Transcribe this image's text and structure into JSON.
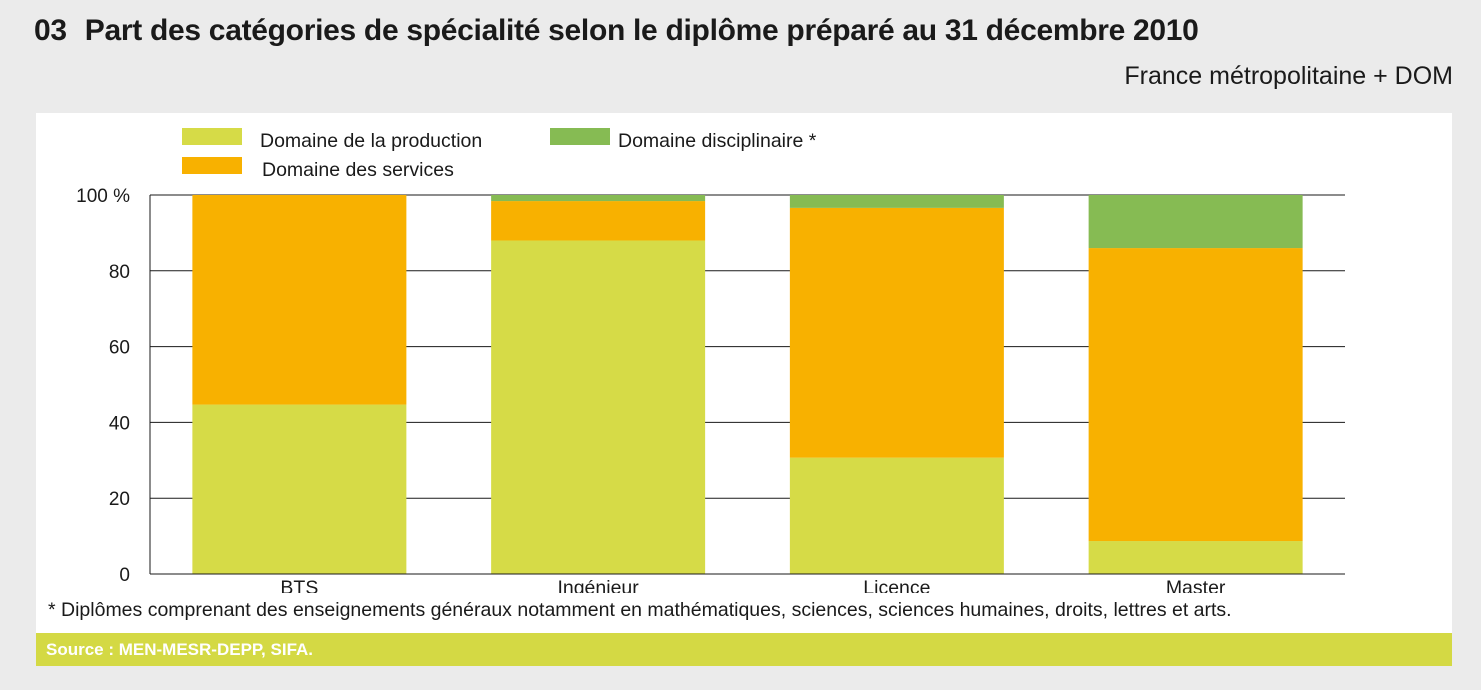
{
  "header": {
    "number": "03",
    "title": "Part des catégories de spécialité selon le diplôme préparé au 31 décembre 2010",
    "subtitle": "France métropolitaine + DOM"
  },
  "colors": {
    "production": "#d6db47",
    "services": "#f8b100",
    "disciplinaire": "#86bb53",
    "source_bar": "#d4d944",
    "page_bg": "#ebebeb"
  },
  "chart_data": {
    "type": "bar",
    "stacked": true,
    "categories": [
      "BTS",
      "Ingénieur",
      "Licence",
      "Master"
    ],
    "series": [
      {
        "name": "Domaine de la production",
        "values": [
          44.7,
          88.0,
          30.7,
          8.7
        ],
        "color": "#d6db47"
      },
      {
        "name": "Domaine des services",
        "values": [
          55.3,
          10.4,
          65.9,
          77.3
        ],
        "color": "#f8b100"
      },
      {
        "name": "Domaine disciplinaire *",
        "values": [
          0.0,
          1.6,
          3.4,
          14.0
        ],
        "color": "#86bb53"
      }
    ],
    "ylim": [
      0,
      100
    ],
    "yticks": [
      0,
      20,
      40,
      60,
      80,
      100
    ],
    "ytick_labels": [
      "0",
      "20",
      "40",
      "60",
      "80",
      "100 %"
    ],
    "grid": true,
    "legend_position": "top-left"
  },
  "footnote": "* Diplômes comprenant des enseignements généraux notamment en mathématiques, sciences, sciences humaines, droits, lettres et arts.",
  "source": "Source : MEN-MESR-DEPP, SIFA."
}
